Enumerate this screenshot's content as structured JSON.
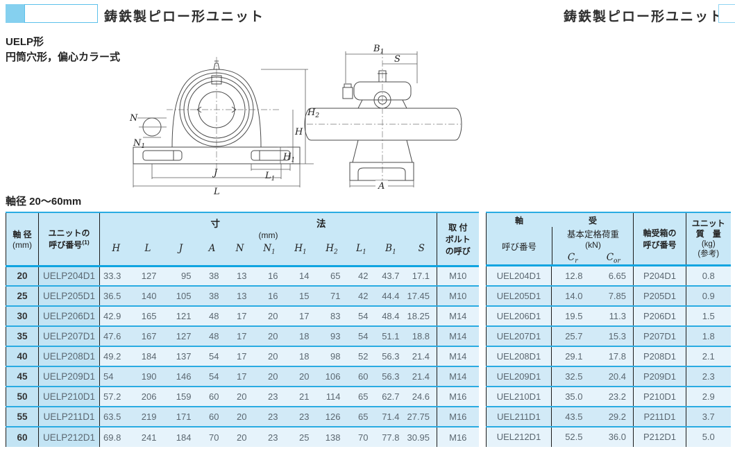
{
  "header": {
    "title_left": "鋳鉄製ピロー形ユニット",
    "title_right": "鋳鉄製ピロー形ユニット"
  },
  "intro": {
    "series": "UELP形",
    "type_desc": "円筒穴形，偏心カラー式",
    "shaft_range": "軸径 20～60mm"
  },
  "figures": {
    "front": {
      "n": "N",
      "n1_main": "N",
      "n1_sub": "1",
      "h2_main": "H",
      "h2_sub": "2",
      "h": "H",
      "h1_main": "H",
      "h1_sub": "1",
      "l1_main": "L",
      "l1_sub": "1",
      "j": "J",
      "l": "L"
    },
    "side": {
      "b1_main": "B",
      "b1_sub": "1",
      "s": "S",
      "a": "A"
    }
  },
  "dimension_table": {
    "headers": {
      "shaft_l1": "軸 径",
      "shaft_l2": "(mm)",
      "unit_l1": "ユニットの",
      "unit_l2": "呼び番号",
      "unit_sup": "(1)",
      "dim_t1": "寸",
      "dim_t2": "法",
      "dim_mm": "(mm)",
      "cols": [
        {
          "m": "H"
        },
        {
          "m": "L"
        },
        {
          "m": "J"
        },
        {
          "m": "A"
        },
        {
          "m": "N"
        },
        {
          "m": "N",
          "s": "1"
        },
        {
          "m": "H",
          "s": "1"
        },
        {
          "m": "H",
          "s": "2"
        },
        {
          "m": "L",
          "s": "1"
        },
        {
          "m": "B",
          "s": "1"
        },
        {
          "m": "S"
        }
      ],
      "bolt_l1": "取 付",
      "bolt_l2": "ボルト",
      "bolt_l3": "の呼び"
    },
    "rows": [
      {
        "shaft": "20",
        "unit": "UELP204D1",
        "dims": [
          "33.3",
          "127",
          "95",
          "38",
          "13",
          "16",
          "14",
          "65",
          "42",
          "43.7",
          "17.1"
        ],
        "bolt": "M10"
      },
      {
        "shaft": "25",
        "unit": "UELP205D1",
        "dims": [
          "36.5",
          "140",
          "105",
          "38",
          "13",
          "16",
          "15",
          "71",
          "42",
          "44.4",
          "17.45"
        ],
        "bolt": "M10"
      },
      {
        "shaft": "30",
        "unit": "UELP206D1",
        "dims": [
          "42.9",
          "165",
          "121",
          "48",
          "17",
          "20",
          "17",
          "83",
          "54",
          "48.4",
          "18.25"
        ],
        "bolt": "M14"
      },
      {
        "shaft": "35",
        "unit": "UELP207D1",
        "dims": [
          "47.6",
          "167",
          "127",
          "48",
          "17",
          "20",
          "18",
          "93",
          "54",
          "51.1",
          "18.8"
        ],
        "bolt": "M14"
      },
      {
        "shaft": "40",
        "unit": "UELP208D1",
        "dims": [
          "49.2",
          "184",
          "137",
          "54",
          "17",
          "20",
          "18",
          "98",
          "52",
          "56.3",
          "21.4"
        ],
        "bolt": "M14"
      },
      {
        "shaft": "45",
        "unit": "UELP209D1",
        "dims": [
          "54",
          "190",
          "146",
          "54",
          "17",
          "20",
          "20",
          "106",
          "60",
          "56.3",
          "21.4"
        ],
        "bolt": "M14"
      },
      {
        "shaft": "50",
        "unit": "UELP210D1",
        "dims": [
          "57.2",
          "206",
          "159",
          "60",
          "20",
          "23",
          "21",
          "114",
          "65",
          "62.7",
          "24.6"
        ],
        "bolt": "M16"
      },
      {
        "shaft": "55",
        "unit": "UELP211D1",
        "dims": [
          "63.5",
          "219",
          "171",
          "60",
          "20",
          "23",
          "23",
          "126",
          "65",
          "71.4",
          "27.75"
        ],
        "bolt": "M16"
      },
      {
        "shaft": "60",
        "unit": "UELP212D1",
        "dims": [
          "69.8",
          "241",
          "184",
          "70",
          "20",
          "23",
          "25",
          "138",
          "70",
          "77.8",
          "30.95"
        ],
        "bolt": "M16"
      }
    ]
  },
  "bearing_table": {
    "headers": {
      "part1": "軸",
      "part2": "受",
      "col1_sub": "呼び番号",
      "col2_sub1": "基本定格荷重",
      "col2_sub2": "(kN)",
      "cr_main": "C",
      "cr_sub": "r",
      "cor_main": "C",
      "cor_sub": "or",
      "housing_l1": "軸受箱の",
      "housing_l2": "呼び番号",
      "mass_l1": "ユニット",
      "mass_l2": "質　量",
      "mass_l3": "(kg)",
      "mass_l4": "(参考)"
    },
    "rows": [
      {
        "bearing": "UEL204D1",
        "cr": "12.8",
        "cor": "6.65",
        "housing": "P204D1",
        "mass": "0.8"
      },
      {
        "bearing": "UEL205D1",
        "cr": "14.0",
        "cor": "7.85",
        "housing": "P205D1",
        "mass": "0.9"
      },
      {
        "bearing": "UEL206D1",
        "cr": "19.5",
        "cor": "11.3",
        "housing": "P206D1",
        "mass": "1.5"
      },
      {
        "bearing": "UEL207D1",
        "cr": "25.7",
        "cor": "15.3",
        "housing": "P207D1",
        "mass": "1.8"
      },
      {
        "bearing": "UEL208D1",
        "cr": "29.1",
        "cor": "17.8",
        "housing": "P208D1",
        "mass": "2.1"
      },
      {
        "bearing": "UEL209D1",
        "cr": "32.5",
        "cor": "20.4",
        "housing": "P209D1",
        "mass": "2.3"
      },
      {
        "bearing": "UEL210D1",
        "cr": "35.0",
        "cor": "23.2",
        "housing": "P210D1",
        "mass": "2.9"
      },
      {
        "bearing": "UEL211D1",
        "cr": "43.5",
        "cor": "29.2",
        "housing": "P211D1",
        "mass": "3.7"
      },
      {
        "bearing": "UEL212D1",
        "cr": "52.5",
        "cor": "36.0",
        "housing": "P212D1",
        "mass": "5.0"
      }
    ]
  }
}
